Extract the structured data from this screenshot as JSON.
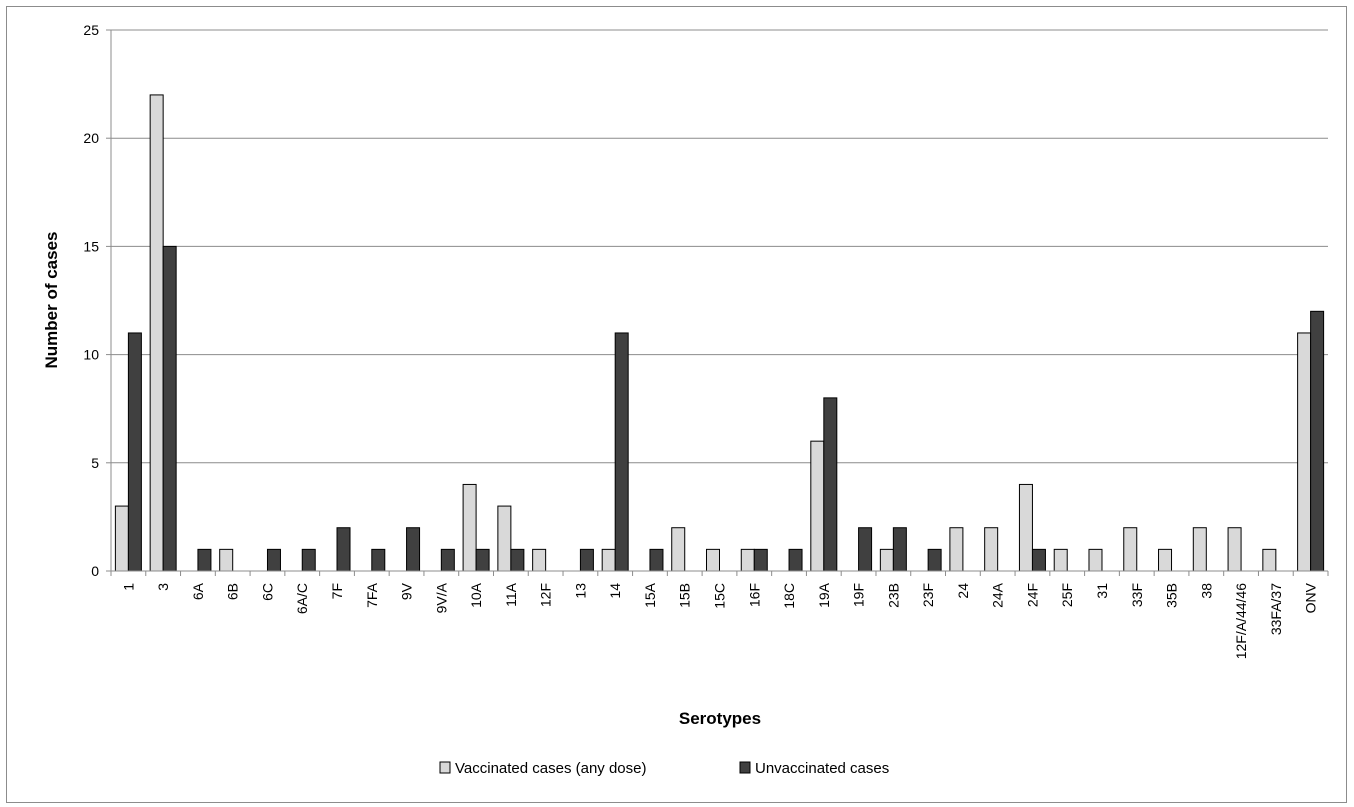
{
  "chart_data": {
    "type": "bar",
    "title": "",
    "xlabel": "Serotypes",
    "ylabel": "Number of cases",
    "ylim": [
      0,
      25
    ],
    "yticks": [
      0,
      5,
      10,
      15,
      20,
      25
    ],
    "grid": true,
    "legend_position": "bottom",
    "categories": [
      "1",
      "3",
      "6A",
      "6B",
      "6C",
      "6A/C",
      "7F",
      "7FA",
      "9V",
      "9V/A",
      "10A",
      "11A",
      "12F",
      "13",
      "14",
      "15A",
      "15B",
      "15C",
      "16F",
      "18C",
      "19A",
      "19F",
      "23B",
      "23F",
      "24",
      "24A",
      "24F",
      "25F",
      "31",
      "33F",
      "35B",
      "38",
      "12F/A/44/46",
      "33FA/37",
      "ONV"
    ],
    "series": [
      {
        "name": "Vaccinated cases (any dose)",
        "color": "#d9d9d9",
        "values": [
          3,
          22,
          0,
          1,
          0,
          0,
          0,
          0,
          0,
          0,
          4,
          3,
          1,
          0,
          1,
          0,
          2,
          1,
          1,
          0,
          6,
          0,
          1,
          0,
          2,
          2,
          4,
          1,
          1,
          2,
          1,
          2,
          2,
          1,
          11
        ]
      },
      {
        "name": "Unvaccinated cases",
        "color": "#404040",
        "values": [
          11,
          15,
          1,
          0,
          1,
          1,
          2,
          1,
          2,
          1,
          1,
          1,
          0,
          1,
          11,
          1,
          0,
          0,
          1,
          1,
          8,
          2,
          2,
          1,
          0,
          0,
          1,
          0,
          0,
          0,
          0,
          0,
          0,
          0,
          12
        ]
      }
    ]
  }
}
